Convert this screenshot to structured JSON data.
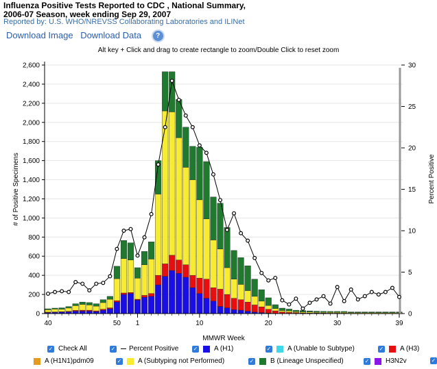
{
  "header": {
    "title_line1": "Influenza Positive Tests Reported to CDC , National Summary,",
    "title_line2": "2006-07 Season, week ending Sep 29, 2007",
    "subtitle": "Reported by: U.S. WHO/NREVSS Collaborating Laboratories and ILINet",
    "download_image": "Download Image",
    "download_data": "Download Data",
    "help_icon": "?",
    "zoom_hint": "Alt key + Click and drag to create rectangle to zoom/Double Click to reset zoom"
  },
  "chart_data": {
    "type": "bar",
    "stacked": true,
    "xlabel": "MMWR Week",
    "ylabel": "# of Positive Specimens",
    "y2label": "Percent Positive",
    "ylim": [
      0,
      2600
    ],
    "y2lim": [
      0,
      30
    ],
    "yticks": [
      "0",
      "200",
      "400",
      "600",
      "800",
      "1,000",
      "1,200",
      "1,400",
      "1,600",
      "1,800",
      "2,000",
      "2,200",
      "2,400",
      "2,600"
    ],
    "y2ticks": [
      "0",
      "5",
      "10",
      "15",
      "20",
      "25",
      "30"
    ],
    "xtick_labels": [
      {
        "index": 0,
        "label": "40"
      },
      {
        "index": 10,
        "label": "50"
      },
      {
        "index": 13,
        "label": "1"
      },
      {
        "index": 22,
        "label": "10"
      },
      {
        "index": 32,
        "label": "20"
      },
      {
        "index": 42,
        "label": "30"
      },
      {
        "index": 51,
        "label": "39"
      }
    ],
    "weeks": [
      40,
      41,
      42,
      43,
      44,
      45,
      46,
      47,
      48,
      49,
      50,
      51,
      52,
      1,
      2,
      3,
      4,
      5,
      6,
      7,
      8,
      9,
      10,
      11,
      12,
      13,
      14,
      15,
      16,
      17,
      18,
      19,
      20,
      21,
      22,
      23,
      24,
      25,
      26,
      27,
      28,
      29,
      30,
      31,
      32,
      33,
      34,
      35,
      36,
      37,
      38,
      39
    ],
    "series": [
      {
        "name": "A (H1)",
        "color": "#1a0ee6",
        "values": [
          10,
          12,
          15,
          18,
          25,
          25,
          25,
          20,
          35,
          50,
          120,
          200,
          210,
          140,
          170,
          180,
          300,
          390,
          450,
          420,
          380,
          270,
          210,
          160,
          130,
          75,
          60,
          40,
          35,
          25,
          15,
          10,
          5,
          3,
          2,
          2,
          2,
          1,
          1,
          1,
          1,
          1,
          1,
          1,
          1,
          1,
          1,
          1,
          1,
          1,
          1,
          1
        ]
      },
      {
        "name": "A (H3)",
        "color": "#e60e0e",
        "values": [
          5,
          5,
          5,
          5,
          8,
          10,
          10,
          8,
          10,
          10,
          15,
          15,
          10,
          10,
          20,
          30,
          100,
          130,
          160,
          140,
          130,
          130,
          160,
          200,
          140,
          180,
          140,
          120,
          110,
          95,
          75,
          60,
          40,
          25,
          15,
          10,
          8,
          6,
          5,
          4,
          4,
          3,
          3,
          3,
          2,
          2,
          2,
          2,
          2,
          2,
          2,
          2
        ]
      },
      {
        "name": "A (Subtyping not Performed)",
        "color": "#f7ec32",
        "values": [
          25,
          30,
          25,
          35,
          50,
          60,
          55,
          50,
          70,
          90,
          230,
          360,
          340,
          220,
          320,
          360,
          850,
          1600,
          1500,
          1280,
          1020,
          1000,
          820,
          630,
          500,
          420,
          280,
          200,
          160,
          120,
          90,
          60,
          40,
          25,
          15,
          15,
          10,
          10,
          10,
          8,
          8,
          8,
          8,
          8,
          6,
          6,
          6,
          6,
          6,
          6,
          6,
          6
        ]
      },
      {
        "name": "B (Lineage Unspecified)",
        "color": "#1f7a2f",
        "values": [
          10,
          10,
          15,
          15,
          20,
          25,
          25,
          25,
          30,
          30,
          130,
          190,
          180,
          110,
          140,
          180,
          350,
          410,
          420,
          400,
          420,
          350,
          550,
          600,
          450,
          480,
          420,
          300,
          280,
          260,
          180,
          120,
          80,
          40,
          25,
          20,
          15,
          15,
          12,
          12,
          10,
          10,
          10,
          10,
          8,
          8,
          8,
          8,
          8,
          8,
          8,
          8
        ]
      }
    ],
    "percent_positive": [
      2.4,
      2.6,
      2.7,
      2.6,
      3.8,
      3.6,
      2.8,
      3.6,
      3.7,
      4.5,
      7.8,
      10.0,
      10.2,
      7.0,
      9.2,
      12.0,
      18.0,
      22.5,
      28.1,
      25.8,
      23.9,
      22.5,
      20.3,
      19.4,
      16.8,
      13.7,
      10.1,
      12.1,
      9.7,
      8.8,
      6.7,
      4.9,
      4.0,
      4.3,
      1.6,
      1.1,
      1.8,
      0.6,
      1.3,
      1.7,
      2.1,
      1.2,
      3.2,
      1.5,
      2.9,
      1.7,
      2.1,
      2.6,
      2.3,
      2.6,
      3.1,
      2.0
    ],
    "grid": true
  },
  "legend": [
    {
      "label": "Check All",
      "type": "check"
    },
    {
      "label": "Percent Positive",
      "type": "line"
    },
    {
      "label": "A (H1)",
      "color": "#1a0ee6"
    },
    {
      "label": "A (Unable to Subtype)",
      "color": "#3fd8e8"
    },
    {
      "label": "A (H3)",
      "color": "#e60e0e"
    },
    {
      "label": "A (H1N1)pdm09",
      "color": "#e59b1e"
    },
    {
      "label": "A (Subtyping not Performed)",
      "color": "#f7ec32"
    },
    {
      "label": "B (Lineage Unspecified)",
      "color": "#1f7a2f"
    },
    {
      "label": "H3N2v",
      "color": "#8a15e8"
    }
  ]
}
